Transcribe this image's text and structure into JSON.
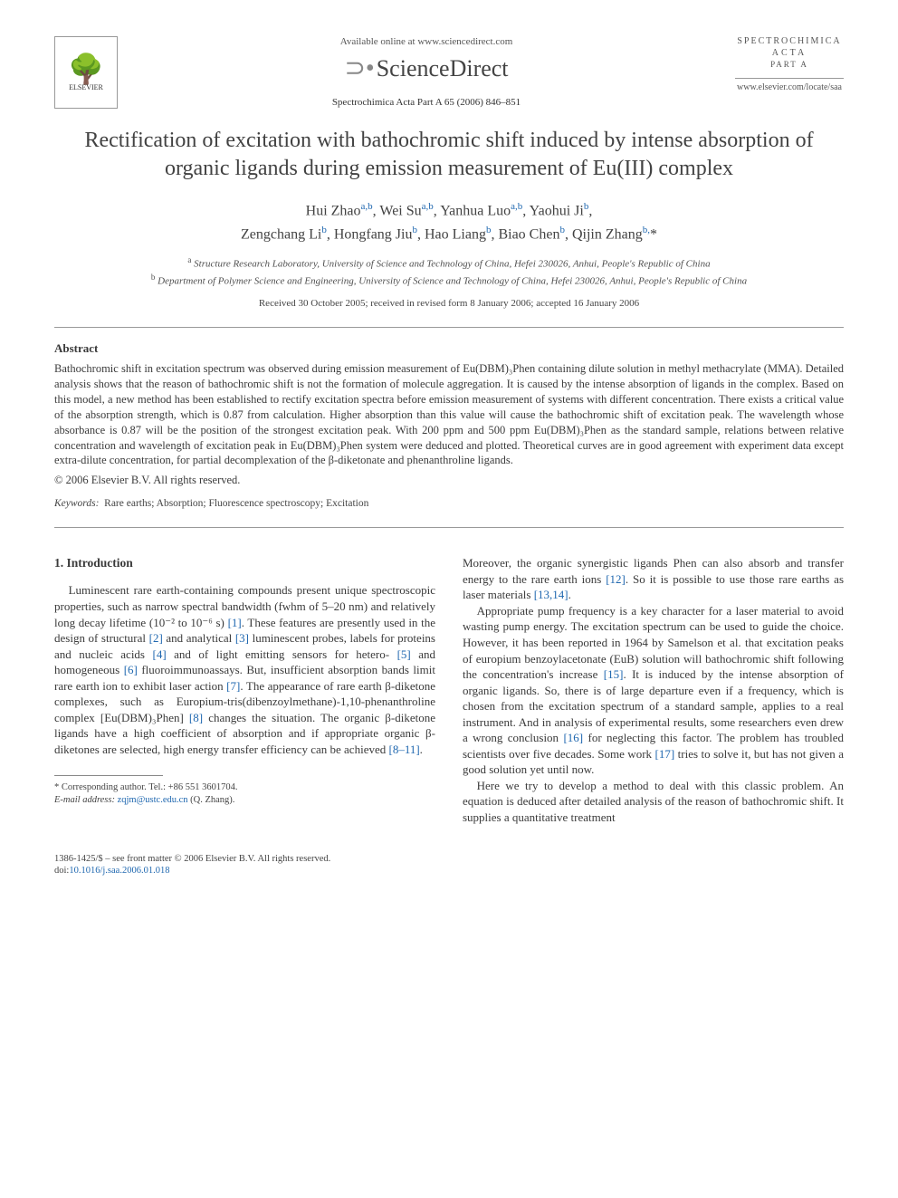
{
  "header": {
    "available_text": "Available online at www.sciencedirect.com",
    "sd_logo": "ScienceDirect",
    "journal_ref": "Spectrochimica Acta Part A 65 (2006) 846–851",
    "elsevier_label": "ELSEVIER",
    "journal_box": {
      "line1": "SPECTROCHIMICA",
      "line2": "ACTA",
      "line3": "PART A",
      "url": "www.elsevier.com/locate/saa"
    }
  },
  "title": "Rectification of excitation with bathochromic shift induced by intense absorption of organic ligands during emission measurement of Eu(III) complex",
  "authors_html": "Hui Zhao<sup>a,b</sup>, Wei Su<sup>a,b</sup>, Yanhua Luo<sup>a,b</sup>, Yaohui Ji<sup>b</sup>,<br>Zengchang Li<sup>b</sup>, Hongfang Jiu<sup>b</sup>, Hao Liang<sup>b</sup>, Biao Chen<sup>b</sup>, Qijin Zhang<sup>b,</sup><span class='star'>*</span>",
  "affiliations": {
    "a": "Structure Research Laboratory, University of Science and Technology of China, Hefei 230026, Anhui, People's Republic of China",
    "b": "Department of Polymer Science and Engineering, University of Science and Technology of China, Hefei 230026, Anhui, People's Republic of China"
  },
  "dates": "Received 30 October 2005; received in revised form 8 January 2006; accepted 16 January 2006",
  "abstract": {
    "heading": "Abstract",
    "body": "Bathochromic shift in excitation spectrum was observed during emission measurement of Eu(DBM)₃Phen containing dilute solution in methyl methacrylate (MMA). Detailed analysis shows that the reason of bathochromic shift is not the formation of molecule aggregation. It is caused by the intense absorption of ligands in the complex. Based on this model, a new method has been established to rectify excitation spectra before emission measurement of systems with different concentration. There exists a critical value of the absorption strength, which is 0.87 from calculation. Higher absorption than this value will cause the bathochromic shift of excitation peak. The wavelength whose absorbance is 0.87 will be the position of the strongest excitation peak. With 200 ppm and 500 ppm Eu(DBM)₃Phen as the standard sample, relations between relative concentration and wavelength of excitation peak in Eu(DBM)₃Phen system were deduced and plotted. Theoretical curves are in good agreement with experiment data except extra-dilute concentration, for partial decomplexation of the β-diketonate and phenanthroline ligands.",
    "copyright": "© 2006 Elsevier B.V. All rights reserved."
  },
  "keywords": {
    "label": "Keywords:",
    "text": "Rare earths; Absorption; Fluorescence spectroscopy; Excitation"
  },
  "intro": {
    "heading": "1. Introduction",
    "p1": "Luminescent rare earth-containing compounds present unique spectroscopic properties, such as narrow spectral bandwidth (fwhm of 5–20 nm) and relatively long decay lifetime (10⁻² to 10⁻⁶ s) [1]. These features are presently used in the design of structural [2] and analytical [3] luminescent probes, labels for proteins and nucleic acids [4] and of light emitting sensors for hetero- [5] and homogeneous [6] fluoroimmunoassays. But, insufficient absorption bands limit rare earth ion to exhibit laser action [7]. The appearance of rare earth β-diketone complexes, such as Europium-tris(dibenzoylmethane)-1,10-phenanthroline complex [Eu(DBM)₃Phen] [8] changes the situation. The organic β-diketone ligands have a high coefficient of absorption and if appropriate organic β-diketones are selected, high energy transfer efficiency can be achieved [8–11].",
    "p2": "Moreover, the organic synergistic ligands Phen can also absorb and transfer energy to the rare earth ions [12]. So it is possible to use those rare earths as laser materials [13,14].",
    "p3": "Appropriate pump frequency is a key character for a laser material to avoid wasting pump energy. The excitation spectrum can be used to guide the choice. However, it has been reported in 1964 by Samelson et al. that excitation peaks of europium benzoylacetonate (EuB) solution will bathochromic shift following the concentration's increase [15]. It is induced by the intense absorption of organic ligands. So, there is of large departure even if a frequency, which is chosen from the excitation spectrum of a standard sample, applies to a real instrument. And in analysis of experimental results, some researchers even drew a wrong conclusion [16] for neglecting this factor. The problem has troubled scientists over five decades. Some work [17] tries to solve it, but has not given a good solution yet until now.",
    "p4": "Here we try to develop a method to deal with this classic problem. An equation is deduced after detailed analysis of the reason of bathochromic shift. It supplies a quantitative treatment"
  },
  "footnote": {
    "corr": "* Corresponding author. Tel.: +86 551 3601704.",
    "email_label": "E-mail address:",
    "email": "zqjm@ustc.edu.cn",
    "email_suffix": "(Q. Zhang)."
  },
  "bottom": {
    "issn": "1386-1425/$ – see front matter © 2006 Elsevier B.V. All rights reserved.",
    "doi_label": "doi:",
    "doi": "10.1016/j.saa.2006.01.018"
  },
  "refs": [
    "[1]",
    "[2]",
    "[3]",
    "[4]",
    "[5]",
    "[6]",
    "[7]",
    "[8]",
    "[8–11]",
    "[12]",
    "[13,14]",
    "[15]",
    "[16]",
    "[17]"
  ],
  "colors": {
    "text": "#3a3a3a",
    "link": "#2068b0",
    "rule": "#999999",
    "bg": "#ffffff"
  }
}
